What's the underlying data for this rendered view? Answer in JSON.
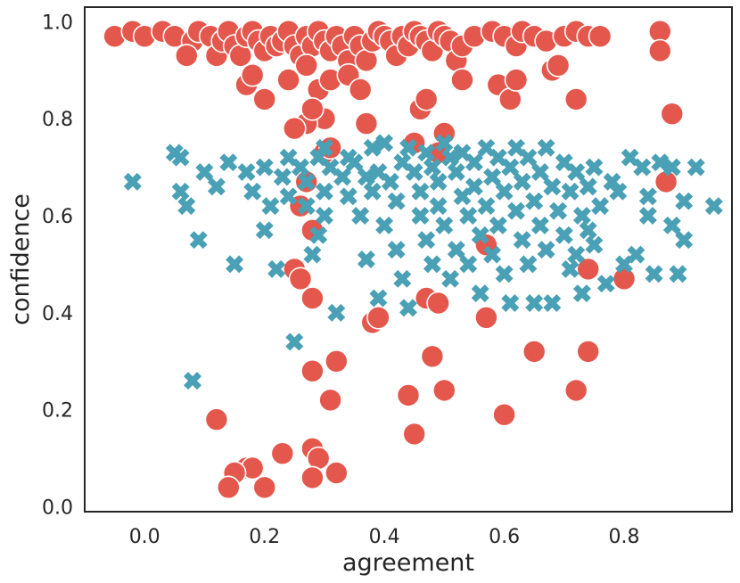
{
  "chart_data": {
    "type": "scatter",
    "xlabel": "agreement",
    "ylabel": "confidence",
    "xlim": [
      -0.1,
      0.98
    ],
    "ylim": [
      -0.01,
      1.03
    ],
    "xticks": [
      "0.0",
      "0.2",
      "0.4",
      "0.6",
      "0.8"
    ],
    "yticks": [
      "0.0",
      "0.2",
      "0.4",
      "0.6",
      "0.8",
      "1.0"
    ],
    "grid": false,
    "colors": {
      "circle_series": "#e4574c",
      "cross_series": "#4aa0b5",
      "axes": "#262626"
    },
    "series": [
      {
        "marker": "circle",
        "points": [
          [
            -0.05,
            0.97
          ],
          [
            -0.02,
            0.98
          ],
          [
            0.0,
            0.97
          ],
          [
            0.03,
            0.98
          ],
          [
            0.05,
            0.97
          ],
          [
            0.08,
            0.96
          ],
          [
            0.07,
            0.93
          ],
          [
            0.09,
            0.98
          ],
          [
            0.11,
            0.97
          ],
          [
            0.12,
            0.93
          ],
          [
            0.13,
            0.96
          ],
          [
            0.14,
            0.98
          ],
          [
            0.15,
            0.95
          ],
          [
            0.16,
            0.93
          ],
          [
            0.17,
            0.97
          ],
          [
            0.18,
            0.98
          ],
          [
            0.19,
            0.96
          ],
          [
            0.2,
            0.94
          ],
          [
            0.21,
            0.97
          ],
          [
            0.22,
            0.95
          ],
          [
            0.23,
            0.96
          ],
          [
            0.24,
            0.98
          ],
          [
            0.25,
            0.95
          ],
          [
            0.26,
            0.93
          ],
          [
            0.27,
            0.97
          ],
          [
            0.28,
            0.95
          ],
          [
            0.29,
            0.98
          ],
          [
            0.3,
            0.96
          ],
          [
            0.31,
            0.94
          ],
          [
            0.32,
            0.97
          ],
          [
            0.33,
            0.95
          ],
          [
            0.34,
            0.92
          ],
          [
            0.35,
            0.97
          ],
          [
            0.36,
            0.95
          ],
          [
            0.37,
            0.92
          ],
          [
            0.38,
            0.96
          ],
          [
            0.39,
            0.98
          ],
          [
            0.4,
            0.97
          ],
          [
            0.41,
            0.96
          ],
          [
            0.42,
            0.93
          ],
          [
            0.43,
            0.97
          ],
          [
            0.44,
            0.95
          ],
          [
            0.45,
            0.98
          ],
          [
            0.46,
            0.97
          ],
          [
            0.47,
            0.96
          ],
          [
            0.48,
            0.94
          ],
          [
            0.49,
            0.98
          ],
          [
            0.5,
            0.97
          ],
          [
            0.51,
            0.96
          ],
          [
            0.52,
            0.92
          ],
          [
            0.53,
            0.95
          ],
          [
            0.55,
            0.97
          ],
          [
            0.58,
            0.98
          ],
          [
            0.6,
            0.97
          ],
          [
            0.62,
            0.95
          ],
          [
            0.63,
            0.98
          ],
          [
            0.65,
            0.97
          ],
          [
            0.67,
            0.96
          ],
          [
            0.68,
            0.9
          ],
          [
            0.7,
            0.97
          ],
          [
            0.72,
            0.98
          ],
          [
            0.74,
            0.97
          ],
          [
            0.76,
            0.97
          ],
          [
            0.86,
            0.98
          ],
          [
            0.86,
            0.94
          ],
          [
            0.17,
            0.87
          ],
          [
            0.18,
            0.89
          ],
          [
            0.2,
            0.84
          ],
          [
            0.24,
            0.88
          ],
          [
            0.27,
            0.91
          ],
          [
            0.29,
            0.86
          ],
          [
            0.31,
            0.88
          ],
          [
            0.34,
            0.89
          ],
          [
            0.36,
            0.86
          ],
          [
            0.3,
            0.8
          ],
          [
            0.27,
            0.79
          ],
          [
            0.25,
            0.78
          ],
          [
            0.28,
            0.82
          ],
          [
            0.37,
            0.79
          ],
          [
            0.46,
            0.82
          ],
          [
            0.47,
            0.84
          ],
          [
            0.5,
            0.77
          ],
          [
            0.53,
            0.88
          ],
          [
            0.59,
            0.87
          ],
          [
            0.61,
            0.84
          ],
          [
            0.62,
            0.88
          ],
          [
            0.69,
            0.91
          ],
          [
            0.72,
            0.84
          ],
          [
            0.88,
            0.81
          ],
          [
            0.3,
            0.73
          ],
          [
            0.31,
            0.74
          ],
          [
            0.27,
            0.67
          ],
          [
            0.26,
            0.62
          ],
          [
            0.28,
            0.57
          ],
          [
            0.25,
            0.49
          ],
          [
            0.26,
            0.47
          ],
          [
            0.28,
            0.43
          ],
          [
            0.45,
            0.75
          ],
          [
            0.49,
            0.73
          ],
          [
            0.57,
            0.54
          ],
          [
            0.74,
            0.49
          ],
          [
            0.8,
            0.47
          ],
          [
            0.87,
            0.67
          ],
          [
            0.47,
            0.43
          ],
          [
            0.49,
            0.42
          ],
          [
            0.38,
            0.38
          ],
          [
            0.39,
            0.39
          ],
          [
            0.57,
            0.39
          ],
          [
            0.28,
            0.28
          ],
          [
            0.32,
            0.3
          ],
          [
            0.48,
            0.31
          ],
          [
            0.44,
            0.23
          ],
          [
            0.5,
            0.24
          ],
          [
            0.65,
            0.32
          ],
          [
            0.74,
            0.32
          ],
          [
            0.72,
            0.24
          ],
          [
            0.31,
            0.22
          ],
          [
            0.6,
            0.19
          ],
          [
            0.12,
            0.18
          ],
          [
            0.45,
            0.15
          ],
          [
            0.23,
            0.11
          ],
          [
            0.28,
            0.12
          ],
          [
            0.29,
            0.1
          ],
          [
            0.17,
            0.08
          ],
          [
            0.18,
            0.08
          ],
          [
            0.15,
            0.07
          ],
          [
            0.32,
            0.07
          ],
          [
            0.28,
            0.06
          ],
          [
            0.14,
            0.04
          ],
          [
            0.2,
            0.04
          ]
        ]
      },
      {
        "marker": "cross",
        "points": [
          [
            -0.02,
            0.67
          ],
          [
            0.05,
            0.73
          ],
          [
            0.06,
            0.72
          ],
          [
            0.06,
            0.65
          ],
          [
            0.07,
            0.62
          ],
          [
            0.09,
            0.55
          ],
          [
            0.1,
            0.69
          ],
          [
            0.12,
            0.66
          ],
          [
            0.14,
            0.71
          ],
          [
            0.15,
            0.5
          ],
          [
            0.17,
            0.69
          ],
          [
            0.18,
            0.65
          ],
          [
            0.2,
            0.7
          ],
          [
            0.2,
            0.57
          ],
          [
            0.21,
            0.62
          ],
          [
            0.22,
            0.49
          ],
          [
            0.23,
            0.68
          ],
          [
            0.24,
            0.72
          ],
          [
            0.24,
            0.64
          ],
          [
            0.25,
            0.34
          ],
          [
            0.26,
            0.7
          ],
          [
            0.27,
            0.67
          ],
          [
            0.27,
            0.62
          ],
          [
            0.28,
            0.52
          ],
          [
            0.29,
            0.72
          ],
          [
            0.29,
            0.56
          ],
          [
            0.3,
            0.74
          ],
          [
            0.3,
            0.65
          ],
          [
            0.3,
            0.6
          ],
          [
            0.31,
            0.7
          ],
          [
            0.32,
            0.4
          ],
          [
            0.33,
            0.68
          ],
          [
            0.34,
            0.64
          ],
          [
            0.34,
            0.72
          ],
          [
            0.35,
            0.71
          ],
          [
            0.36,
            0.6
          ],
          [
            0.37,
            0.68
          ],
          [
            0.37,
            0.51
          ],
          [
            0.38,
            0.74
          ],
          [
            0.38,
            0.65
          ],
          [
            0.39,
            0.69
          ],
          [
            0.39,
            0.43
          ],
          [
            0.4,
            0.75
          ],
          [
            0.4,
            0.58
          ],
          [
            0.41,
            0.67
          ],
          [
            0.42,
            0.63
          ],
          [
            0.42,
            0.53
          ],
          [
            0.43,
            0.71
          ],
          [
            0.43,
            0.47
          ],
          [
            0.44,
            0.74
          ],
          [
            0.44,
            0.41
          ],
          [
            0.45,
            0.69
          ],
          [
            0.46,
            0.65
          ],
          [
            0.46,
            0.6
          ],
          [
            0.47,
            0.73
          ],
          [
            0.47,
            0.55
          ],
          [
            0.48,
            0.7
          ],
          [
            0.48,
            0.5
          ],
          [
            0.49,
            0.67
          ],
          [
            0.49,
            0.62
          ],
          [
            0.5,
            0.75
          ],
          [
            0.5,
            0.58
          ],
          [
            0.51,
            0.72
          ],
          [
            0.51,
            0.47
          ],
          [
            0.52,
            0.69
          ],
          [
            0.52,
            0.53
          ],
          [
            0.53,
            0.73
          ],
          [
            0.53,
            0.64
          ],
          [
            0.54,
            0.6
          ],
          [
            0.54,
            0.5
          ],
          [
            0.55,
            0.71
          ],
          [
            0.55,
            0.66
          ],
          [
            0.56,
            0.56
          ],
          [
            0.56,
            0.44
          ],
          [
            0.57,
            0.74
          ],
          [
            0.57,
            0.62
          ],
          [
            0.58,
            0.68
          ],
          [
            0.58,
            0.52
          ],
          [
            0.59,
            0.72
          ],
          [
            0.59,
            0.58
          ],
          [
            0.6,
            0.65
          ],
          [
            0.6,
            0.48
          ],
          [
            0.61,
            0.7
          ],
          [
            0.61,
            0.42
          ],
          [
            0.62,
            0.74
          ],
          [
            0.62,
            0.61
          ],
          [
            0.63,
            0.67
          ],
          [
            0.63,
            0.55
          ],
          [
            0.64,
            0.72
          ],
          [
            0.64,
            0.5
          ],
          [
            0.65,
            0.63
          ],
          [
            0.65,
            0.42
          ],
          [
            0.66,
            0.69
          ],
          [
            0.66,
            0.58
          ],
          [
            0.67,
            0.74
          ],
          [
            0.67,
            0.53
          ],
          [
            0.68,
            0.66
          ],
          [
            0.68,
            0.42
          ],
          [
            0.69,
            0.61
          ],
          [
            0.7,
            0.71
          ],
          [
            0.7,
            0.56
          ],
          [
            0.71,
            0.65
          ],
          [
            0.71,
            0.49
          ],
          [
            0.72,
            0.69
          ],
          [
            0.72,
            0.52
          ],
          [
            0.73,
            0.6
          ],
          [
            0.73,
            0.44
          ],
          [
            0.74,
            0.66
          ],
          [
            0.74,
            0.57
          ],
          [
            0.75,
            0.7
          ],
          [
            0.75,
            0.54
          ],
          [
            0.76,
            0.62
          ],
          [
            0.77,
            0.46
          ],
          [
            0.78,
            0.67
          ],
          [
            0.79,
            0.65
          ],
          [
            0.8,
            0.5
          ],
          [
            0.81,
            0.72
          ],
          [
            0.82,
            0.52
          ],
          [
            0.83,
            0.7
          ],
          [
            0.84,
            0.6
          ],
          [
            0.84,
            0.64
          ],
          [
            0.85,
            0.48
          ],
          [
            0.86,
            0.71
          ],
          [
            0.88,
            0.7
          ],
          [
            0.88,
            0.58
          ],
          [
            0.89,
            0.48
          ],
          [
            0.9,
            0.55
          ],
          [
            0.9,
            0.63
          ],
          [
            0.92,
            0.7
          ],
          [
            0.95,
            0.62
          ],
          [
            0.08,
            0.26
          ]
        ]
      }
    ]
  }
}
